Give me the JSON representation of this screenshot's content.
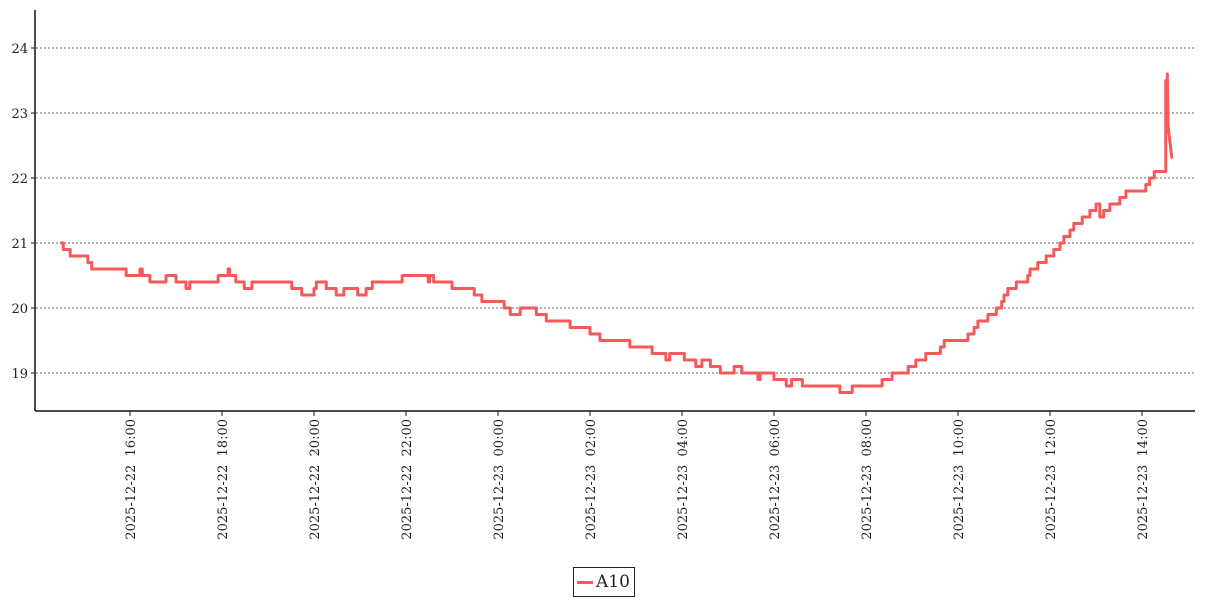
{
  "chart_data": {
    "type": "line",
    "title": "",
    "xlabel": "",
    "ylabel": "",
    "ylim": [
      18.4,
      24.6
    ],
    "xlim": [
      "2025-12-22 13:50",
      "2025-12-23 14:55"
    ],
    "grid": {
      "y": true,
      "x": false,
      "style": "dotted"
    },
    "legend_position": "bottom-center",
    "y_ticks": [
      19,
      20,
      21,
      22,
      23,
      24
    ],
    "x_ticks": [
      "2025-12-22 16:00",
      "2025-12-22 18:00",
      "2025-12-22 20:00",
      "2025-12-22 22:00",
      "2025-12-23 00:00",
      "2025-12-23 02:00",
      "2025-12-23 04:00",
      "2025-12-23 06:00",
      "2025-12-23 08:00",
      "2025-12-23 10:00",
      "2025-12-23 12:00",
      "2025-12-23 14:00"
    ],
    "x_tick_labels": [
      "2025-12-22  16:00",
      "2025-12-22  18:00",
      "2025-12-22  20:00",
      "2025-12-22  22:00",
      "2025-12-23  00:00",
      "2025-12-23  02:00",
      "2025-12-23  04:00",
      "2025-12-23  06:00",
      "2025-12-23  08:00",
      "2025-12-23  10:00",
      "2025-12-23  12:00",
      "2025-12-23  14:00"
    ],
    "series": [
      {
        "name": "A10",
        "color": "#f55a5a",
        "x": [
          "2025-12-22 14:29",
          "2025-12-22 14:33",
          "2025-12-22 14:42",
          "2025-12-22 15:05",
          "2025-12-22 15:10",
          "2025-12-22 15:55",
          "2025-12-22 16:13",
          "2025-12-22 16:16",
          "2025-12-22 16:26",
          "2025-12-22 16:47",
          "2025-12-22 17:00",
          "2025-12-22 17:13",
          "2025-12-22 17:18",
          "2025-12-22 17:55",
          "2025-12-22 18:08",
          "2025-12-22 18:10",
          "2025-12-22 18:18",
          "2025-12-22 18:29",
          "2025-12-22 18:39",
          "2025-12-22 19:31",
          "2025-12-22 19:44",
          "2025-12-22 20:00",
          "2025-12-22 20:03",
          "2025-12-22 20:16",
          "2025-12-22 20:29",
          "2025-12-22 20:39",
          "2025-12-22 20:57",
          "2025-12-22 21:08",
          "2025-12-22 21:16",
          "2025-12-22 21:55",
          "2025-12-22 22:29",
          "2025-12-22 22:31",
          "2025-12-22 22:36",
          "2025-12-22 23:00",
          "2025-12-22 23:29",
          "2025-12-22 23:39",
          "2025-12-23 00:08",
          "2025-12-23 00:16",
          "2025-12-23 00:29",
          "2025-12-23 00:50",
          "2025-12-23 01:03",
          "2025-12-23 01:34",
          "2025-12-23 02:00",
          "2025-12-23 02:13",
          "2025-12-23 02:52",
          "2025-12-23 03:21",
          "2025-12-23 03:39",
          "2025-12-23 03:44",
          "2025-12-23 04:03",
          "2025-12-23 04:18",
          "2025-12-23 04:26",
          "2025-12-23 04:37",
          "2025-12-23 04:50",
          "2025-12-23 05:08",
          "2025-12-23 05:18",
          "2025-12-23 05:39",
          "2025-12-23 05:42",
          "2025-12-23 06:00",
          "2025-12-23 06:16",
          "2025-12-23 06:23",
          "2025-12-23 06:37",
          "2025-12-23 07:26",
          "2025-12-23 07:42",
          "2025-12-23 08:21",
          "2025-12-23 08:34",
          "2025-12-23 08:55",
          "2025-12-23 09:05",
          "2025-12-23 09:18",
          "2025-12-23 09:37",
          "2025-12-23 09:42",
          "2025-12-23 10:13",
          "2025-12-23 10:21",
          "2025-12-23 10:26",
          "2025-12-23 10:39",
          "2025-12-23 10:50",
          "2025-12-23 10:57",
          "2025-12-23 11:00",
          "2025-12-23 11:05",
          "2025-12-23 11:16",
          "2025-12-23 11:31",
          "2025-12-23 11:34",
          "2025-12-23 11:44",
          "2025-12-23 11:55",
          "2025-12-23 12:05",
          "2025-12-23 12:13",
          "2025-12-23 12:18",
          "2025-12-23 12:26",
          "2025-12-23 12:31",
          "2025-12-23 12:42",
          "2025-12-23 12:52",
          "2025-12-23 13:00",
          "2025-12-23 13:05",
          "2025-12-23 13:10",
          "2025-12-23 13:18",
          "2025-12-23 13:31",
          "2025-12-23 13:39",
          "2025-12-23 14:05",
          "2025-12-23 14:10",
          "2025-12-23 14:16",
          "2025-12-23 14:30",
          "2025-12-23 14:31",
          "2025-12-23 14:33",
          "2025-12-23 14:34",
          "2025-12-23 14:39"
        ],
        "y": [
          21.0,
          20.9,
          20.8,
          20.7,
          20.6,
          20.5,
          20.6,
          20.5,
          20.4,
          20.5,
          20.4,
          20.3,
          20.4,
          20.5,
          20.6,
          20.5,
          20.4,
          20.3,
          20.4,
          20.3,
          20.2,
          20.3,
          20.4,
          20.3,
          20.2,
          20.3,
          20.2,
          20.3,
          20.4,
          20.5,
          20.4,
          20.5,
          20.4,
          20.3,
          20.2,
          20.1,
          20.0,
          19.9,
          20.0,
          19.9,
          19.8,
          19.7,
          19.6,
          19.5,
          19.4,
          19.3,
          19.2,
          19.3,
          19.2,
          19.1,
          19.2,
          19.1,
          19.0,
          19.1,
          19.0,
          18.9,
          19.0,
          18.9,
          18.8,
          18.9,
          18.8,
          18.7,
          18.8,
          18.9,
          19.0,
          19.1,
          19.2,
          19.3,
          19.4,
          19.5,
          19.6,
          19.7,
          19.8,
          19.9,
          20.0,
          20.1,
          20.2,
          20.3,
          20.4,
          20.5,
          20.6,
          20.7,
          20.8,
          20.9,
          21.0,
          21.1,
          21.2,
          21.3,
          21.4,
          21.5,
          21.6,
          21.4,
          21.5,
          21.6,
          21.7,
          21.8,
          21.9,
          22.0,
          22.1,
          22.1,
          23.5,
          23.6,
          22.8,
          22.3
        ]
      }
    ]
  },
  "legend": {
    "label": "A10"
  }
}
